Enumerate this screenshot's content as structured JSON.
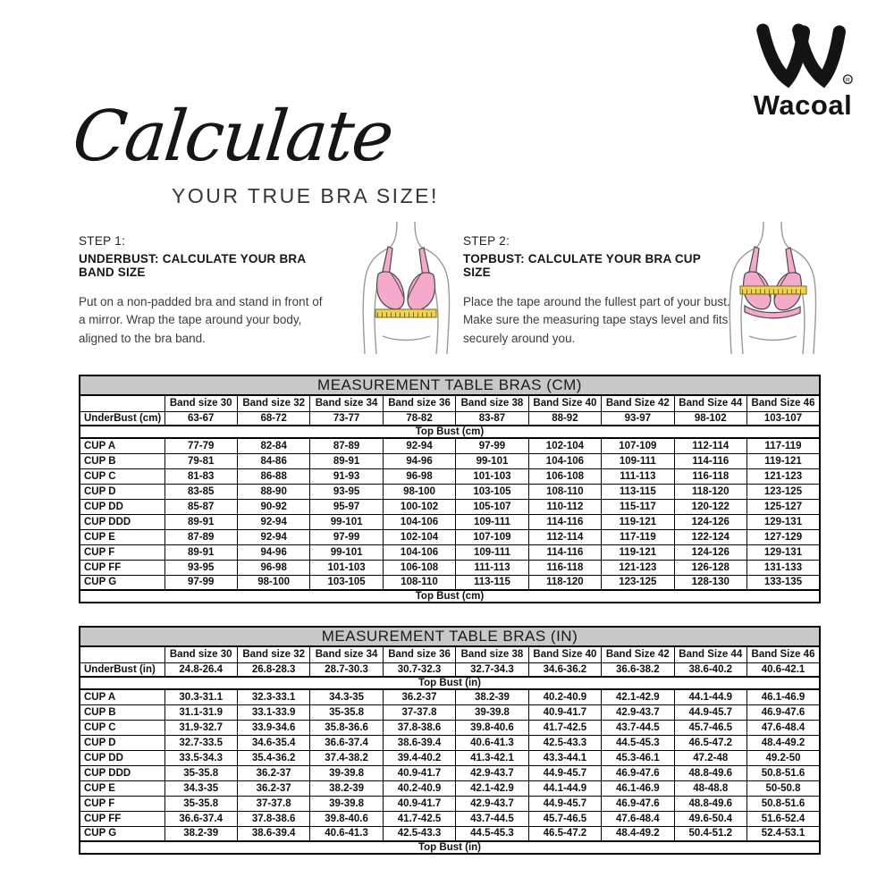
{
  "brand": {
    "name": "Wacoal",
    "registered_mark": "®"
  },
  "header": {
    "script_title": "Calculate",
    "subtitle": "YOUR TRUE BRA SIZE!"
  },
  "steps": [
    {
      "label": "STEP 1:",
      "heading": "UNDERBUST: CALCULATE YOUR BRA BAND SIZE",
      "body": "Put on a non-padded bra and stand in front of a mirror. Wrap the tape around your body, aligned to the bra band."
    },
    {
      "label": "STEP 2:",
      "heading": "TOPBUST: CALCULATE YOUR BRA CUP SIZE",
      "body": "Place the tape around the fullest part of your bust. Make sure the measuring tape stays level and fits securely around you."
    }
  ],
  "icons": {
    "logo_mark": "wacoal-double-v-mark",
    "step1_illustration": "bra-with-measuring-tape-underbust",
    "step2_illustration": "bra-with-measuring-tape-topbust"
  },
  "colors": {
    "table_title_bg": "#c8c8c8",
    "bra_pink": "#f4aacb",
    "tape_yellow": "#eed24f",
    "line_gray": "#9a9a9a",
    "text_black": "#161616"
  },
  "tables": [
    {
      "title": "MEASUREMENT TABLE BRAS (CM)",
      "band_headers": [
        "Band size 30",
        "Band size 32",
        "Band size 34",
        "Band size 36",
        "Band size 38",
        "Band Size 40",
        "Band Size 42",
        "Band Size 44",
        "Band Size 46"
      ],
      "underbust_label": "UnderBust (cm)",
      "underbust_values": [
        "63-67",
        "68-72",
        "73-77",
        "78-82",
        "83-87",
        "88-92",
        "93-97",
        "98-102",
        "103-107"
      ],
      "topbust_label": "Top Bust (cm)",
      "cup_rows": [
        {
          "label": "CUP A",
          "values": [
            "77-79",
            "82-84",
            "87-89",
            "92-94",
            "97-99",
            "102-104",
            "107-109",
            "112-114",
            "117-119"
          ]
        },
        {
          "label": "CUP B",
          "values": [
            "79-81",
            "84-86",
            "89-91",
            "94-96",
            "99-101",
            "104-106",
            "109-111",
            "114-116",
            "119-121"
          ]
        },
        {
          "label": "CUP C",
          "values": [
            "81-83",
            "86-88",
            "91-93",
            "96-98",
            "101-103",
            "106-108",
            "111-113",
            "116-118",
            "121-123"
          ]
        },
        {
          "label": "CUP D",
          "values": [
            "83-85",
            "88-90",
            "93-95",
            "98-100",
            "103-105",
            "108-110",
            "113-115",
            "118-120",
            "123-125"
          ]
        },
        {
          "label": "CUP DD",
          "values": [
            "85-87",
            "90-92",
            "95-97",
            "100-102",
            "105-107",
            "110-112",
            "115-117",
            "120-122",
            "125-127"
          ]
        },
        {
          "label": "CUP DDD",
          "values": [
            "89-91",
            "92-94",
            "99-101",
            "104-106",
            "109-111",
            "114-116",
            "119-121",
            "124-126",
            "129-131"
          ]
        },
        {
          "label": "CUP E",
          "values": [
            "87-89",
            "92-94",
            "97-99",
            "102-104",
            "107-109",
            "112-114",
            "117-119",
            "122-124",
            "127-129"
          ]
        },
        {
          "label": "CUP F",
          "values": [
            "89-91",
            "94-96",
            "99-101",
            "104-106",
            "109-111",
            "114-116",
            "119-121",
            "124-126",
            "129-131"
          ]
        },
        {
          "label": "CUP FF",
          "values": [
            "93-95",
            "96-98",
            "101-103",
            "106-108",
            "111-113",
            "116-118",
            "121-123",
            "126-128",
            "131-133"
          ]
        },
        {
          "label": "CUP G",
          "values": [
            "97-99",
            "98-100",
            "103-105",
            "108-110",
            "113-115",
            "118-120",
            "123-125",
            "128-130",
            "133-135"
          ]
        }
      ]
    },
    {
      "title": "MEASUREMENT TABLE BRAS (IN)",
      "band_headers": [
        "Band size 30",
        "Band size 32",
        "Band size 34",
        "Band size 36",
        "Band size 38",
        "Band Size 40",
        "Band Size 42",
        "Band Size 44",
        "Band Size 46"
      ],
      "underbust_label": "UnderBust (in)",
      "underbust_values": [
        "24.8-26.4",
        "26.8-28.3",
        "28.7-30.3",
        "30.7-32.3",
        "32.7-34.3",
        "34.6-36.2",
        "36.6-38.2",
        "38.6-40.2",
        "40.6-42.1"
      ],
      "topbust_label": "Top Bust (in)",
      "cup_rows": [
        {
          "label": "CUP A",
          "values": [
            "30.3-31.1",
            "32.3-33.1",
            "34.3-35",
            "36.2-37",
            "38.2-39",
            "40.2-40.9",
            "42.1-42.9",
            "44.1-44.9",
            "46.1-46.9"
          ]
        },
        {
          "label": "CUP B",
          "values": [
            "31.1-31.9",
            "33.1-33.9",
            "35-35.8",
            "37-37.8",
            "39-39.8",
            "40.9-41.7",
            "42.9-43.7",
            "44.9-45.7",
            "46.9-47.6"
          ]
        },
        {
          "label": "CUP C",
          "values": [
            "31.9-32.7",
            "33.9-34.6",
            "35.8-36.6",
            "37.8-38.6",
            "39.8-40.6",
            "41.7-42.5",
            "43.7-44.5",
            "45.7-46.5",
            "47.6-48.4"
          ]
        },
        {
          "label": "CUP D",
          "values": [
            "32.7-33.5",
            "34.6-35.4",
            "36.6-37.4",
            "38.6-39.4",
            "40.6-41.3",
            "42.5-43.3",
            "44.5-45.3",
            "46.5-47.2",
            "48.4-49.2"
          ]
        },
        {
          "label": "CUP DD",
          "values": [
            "33.5-34.3",
            "35.4-36.2",
            "37.4-38.2",
            "39.4-40.2",
            "41.3-42.1",
            "43.3-44.1",
            "45.3-46.1",
            "47.2-48",
            "49.2-50"
          ]
        },
        {
          "label": "CUP DDD",
          "values": [
            "35-35.8",
            "36.2-37",
            "39-39.8",
            "40.9-41.7",
            "42.9-43.7",
            "44.9-45.7",
            "46.9-47.6",
            "48.8-49.6",
            "50.8-51.6"
          ]
        },
        {
          "label": "CUP E",
          "values": [
            "34.3-35",
            "36.2-37",
            "38.2-39",
            "40.2-40.9",
            "42.1-42.9",
            "44.1-44.9",
            "46.1-46.9",
            "48-48.8",
            "50-50.8"
          ]
        },
        {
          "label": "CUP F",
          "values": [
            "35-35.8",
            "37-37.8",
            "39-39.8",
            "40.9-41.7",
            "42.9-43.7",
            "44.9-45.7",
            "46.9-47.6",
            "48.8-49.6",
            "50.8-51.6"
          ]
        },
        {
          "label": "CUP FF",
          "values": [
            "36.6-37.4",
            "37.8-38.6",
            "39.8-40.6",
            "41.7-42.5",
            "43.7-44.5",
            "45.7-46.5",
            "47.6-48.4",
            "49.6-50.4",
            "51.6-52.4"
          ]
        },
        {
          "label": "CUP G",
          "values": [
            "38.2-39",
            "38.6-39.4",
            "40.6-41.3",
            "42.5-43.3",
            "44.5-45.3",
            "46.5-47.2",
            "48.4-49.2",
            "50.4-51.2",
            "52.4-53.1"
          ]
        }
      ]
    }
  ]
}
